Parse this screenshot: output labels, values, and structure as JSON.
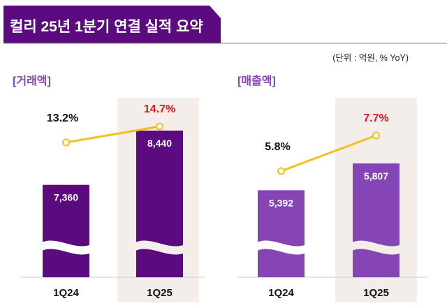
{
  "header": {
    "title": "컬리 25년 1분기 연결 실적 요약",
    "unit_note": "(단위 : 억원, % YoY)"
  },
  "colors": {
    "banner": "#5c0a80",
    "gmv_bar": "#5c0a80",
    "revenue_bar": "#8545b5",
    "line": "#f5be1e",
    "highlight_bg": "#f4eeea",
    "label": "#8a45b8",
    "red": "#e8141e"
  },
  "chart_data": [
    {
      "type": "bar",
      "title": "[거래액]",
      "categories": [
        "1Q24",
        "1Q25"
      ],
      "values": [
        7360,
        8440
      ],
      "value_labels": [
        "7,360",
        "8,440"
      ],
      "yoy": [
        13.2,
        14.7
      ],
      "yoy_labels": [
        "13.2%",
        "14.7%"
      ],
      "highlight": "1Q25",
      "axis_break": true
    },
    {
      "type": "bar",
      "title": "[매출액]",
      "categories": [
        "1Q24",
        "1Q25"
      ],
      "values": [
        5392,
        5807
      ],
      "value_labels": [
        "5,392",
        "5,807"
      ],
      "yoy": [
        5.8,
        7.7
      ],
      "yoy_labels": [
        "5.8%",
        "7.7%"
      ],
      "highlight": "1Q25",
      "axis_break": true
    }
  ]
}
